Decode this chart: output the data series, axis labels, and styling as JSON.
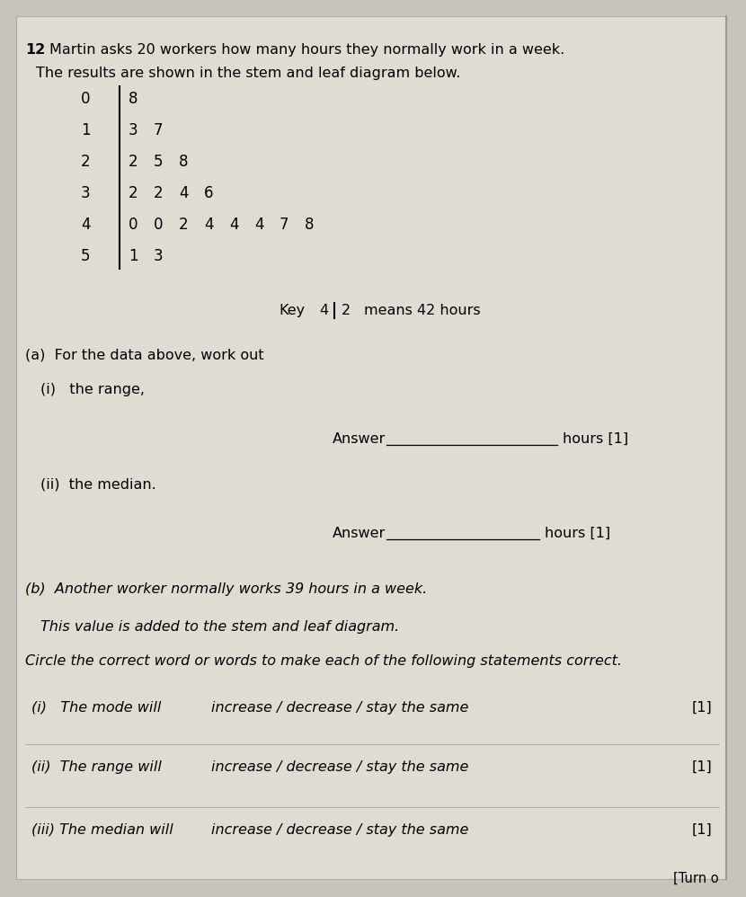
{
  "bg_color": "#c8c4bc",
  "page_bg": "#e0dcd4",
  "question_number": "12",
  "title_line1": "Martin asks 20 workers how many hours they normally work in a week.",
  "title_line2": "The results are shown in the stem and leaf diagram below.",
  "stems": [
    "0",
    "1",
    "2",
    "3",
    "4",
    "5"
  ],
  "leaves": [
    [
      "8"
    ],
    [
      "3",
      "7"
    ],
    [
      "2",
      "5",
      "8"
    ],
    [
      "2",
      "2",
      "4",
      "6"
    ],
    [
      "0",
      "0",
      "2",
      "4",
      "4",
      "4",
      "7",
      "8"
    ],
    [
      "1",
      "3"
    ]
  ],
  "part_a_header": "(a)  For the data above, work out",
  "part_a_i": "(i)   the range,",
  "part_a_ii": "(ii)  the median.",
  "part_b_intro1": "(b)  Another worker normally works 39 hours in a week.",
  "part_b_intro2": "This value is added to the stem and leaf diagram.",
  "part_b_intro3": "Circle the correct word or words to make each of the following statements correct.",
  "part_b_i_label": "(i)   The mode will",
  "part_b_i_options": "increase / decrease / stay the same",
  "part_b_ii_label": "(ii)  The range will",
  "part_b_ii_options": "increase / decrease / stay the same",
  "part_b_iii_label": "(iii) The median will",
  "part_b_iii_options": "increase / decrease / stay the same",
  "mark": "[1]",
  "turn_over": "[Turn o"
}
